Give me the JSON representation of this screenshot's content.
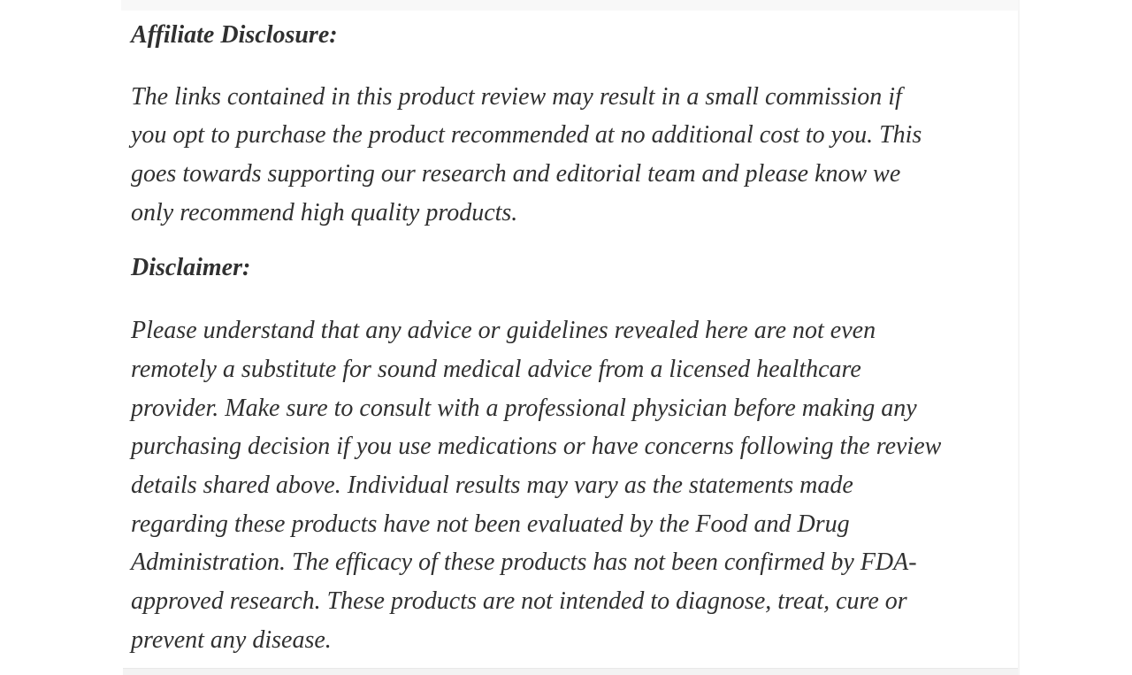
{
  "page": {
    "background_color": "#ffffff",
    "text_color": "#303030",
    "edge_strip_color": "#f8f8f8"
  },
  "article": {
    "sections": [
      {
        "heading": "Affiliate Disclosure:",
        "lines": [
          "The links contained in this product review may result in a small commission if",
          "you opt to purchase the product recommended at no additional cost to you. This",
          "goes towards supporting our research and editorial team and please know we",
          "only recommend high quality products."
        ]
      },
      {
        "heading": "Disclaimer:",
        "lines": [
          "Please understand that any advice or guidelines revealed here are not even",
          "remotely a substitute for sound medical advice from a licensed healthcare",
          "provider. Make sure to consult with a professional physician before making any",
          "purchasing decision if you use medications or have concerns following the review",
          "details shared above. Individual results may vary as the statements made",
          "regarding these products have not been evaluated by the Food and Drug",
          "Administration. The efficacy of these products has not been confirmed by FDA-",
          "approved research. These products are not intended to diagnose, treat, cure or",
          "prevent any disease."
        ]
      }
    ]
  }
}
